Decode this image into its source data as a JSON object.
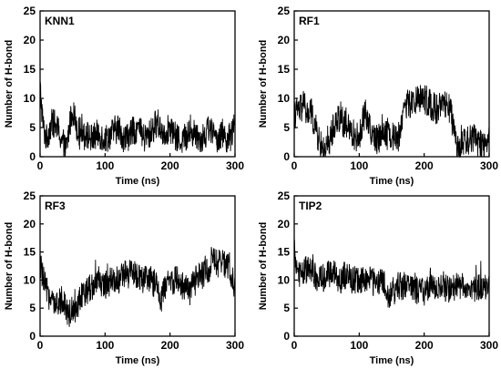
{
  "chart_data": [
    {
      "type": "line",
      "title": "KNN1",
      "xlabel": "Time (ns)",
      "ylabel": "Number of H-bond",
      "xlim": [
        0,
        300
      ],
      "ylim": [
        0,
        25
      ],
      "xticks": [
        0,
        100,
        200,
        300
      ],
      "yticks": [
        0,
        5,
        10,
        15,
        20,
        25
      ],
      "series_color": "#000000",
      "series": [
        {
          "x": [
            0,
            2,
            5,
            10,
            15,
            20,
            25,
            30,
            35,
            40,
            45,
            50,
            55,
            60,
            65,
            70,
            80,
            90,
            100,
            110,
            120,
            130,
            140,
            150,
            160,
            170,
            180,
            190,
            200,
            210,
            220,
            230,
            240,
            250,
            260,
            270,
            280,
            290,
            300
          ],
          "y": [
            12,
            9,
            5,
            3,
            5,
            6,
            5,
            4,
            2,
            1,
            5,
            8,
            6,
            4,
            5,
            4,
            3,
            4,
            3,
            4,
            5,
            3,
            4,
            5,
            3,
            4,
            6,
            4,
            5,
            3,
            3,
            4,
            4,
            3,
            5,
            3,
            4,
            3,
            5
          ]
        }
      ]
    },
    {
      "type": "line",
      "title": "RF1",
      "xlabel": "Time (ns)",
      "ylabel": "Number of H-bond",
      "xlim": [
        0,
        300
      ],
      "ylim": [
        0,
        25
      ],
      "xticks": [
        0,
        100,
        200,
        300
      ],
      "yticks": [
        0,
        5,
        10,
        15,
        20,
        25
      ],
      "series_color": "#000000",
      "series": [
        {
          "x": [
            0,
            5,
            10,
            15,
            20,
            25,
            30,
            35,
            40,
            45,
            50,
            55,
            60,
            65,
            70,
            75,
            80,
            90,
            100,
            105,
            110,
            115,
            120,
            125,
            130,
            135,
            140,
            145,
            150,
            155,
            160,
            165,
            170,
            180,
            190,
            200,
            210,
            220,
            230,
            240,
            245,
            250,
            255,
            260,
            270,
            280,
            290,
            300
          ],
          "y": [
            7,
            8,
            8,
            9,
            7,
            8,
            6,
            4,
            2,
            1,
            1,
            3,
            5,
            6,
            7,
            6,
            5,
            4,
            3,
            6,
            8,
            5,
            4,
            3,
            3,
            5,
            4,
            5,
            3,
            4,
            3,
            6,
            9,
            9,
            10,
            10,
            9,
            8,
            9,
            8,
            5,
            1,
            2,
            2,
            3,
            3,
            2,
            3
          ]
        }
      ]
    },
    {
      "type": "line",
      "title": "RF3",
      "xlabel": "Time (ns)",
      "ylabel": "Number of H-bond",
      "xlim": [
        0,
        300
      ],
      "ylim": [
        0,
        25
      ],
      "xticks": [
        0,
        100,
        200,
        300
      ],
      "yticks": [
        0,
        5,
        10,
        15,
        20,
        25
      ],
      "series_color": "#000000",
      "series": [
        {
          "x": [
            0,
            5,
            10,
            15,
            20,
            25,
            30,
            35,
            40,
            45,
            50,
            55,
            60,
            70,
            80,
            90,
            100,
            110,
            120,
            130,
            140,
            150,
            160,
            170,
            180,
            185,
            190,
            200,
            210,
            220,
            230,
            240,
            250,
            260,
            265,
            270,
            280,
            290,
            300
          ],
          "y": [
            13,
            10,
            8,
            7,
            6,
            5,
            6,
            7,
            5,
            4,
            5,
            5,
            6,
            8,
            9,
            10,
            9,
            10,
            10,
            11,
            11,
            11,
            10,
            10,
            9,
            6,
            8,
            10,
            10,
            9,
            8,
            10,
            11,
            12,
            14,
            13,
            13,
            12,
            9
          ]
        }
      ]
    },
    {
      "type": "line",
      "title": "TIP2",
      "xlabel": "Time (ns)",
      "ylabel": "Number of H-bond",
      "xlim": [
        0,
        300
      ],
      "ylim": [
        0,
        25
      ],
      "xticks": [
        0,
        100,
        200,
        300
      ],
      "yticks": [
        0,
        5,
        10,
        15,
        20,
        25
      ],
      "series_color": "#000000",
      "series": [
        {
          "x": [
            0,
            2,
            5,
            10,
            20,
            30,
            40,
            50,
            60,
            70,
            80,
            90,
            100,
            110,
            120,
            130,
            140,
            145,
            150,
            155,
            160,
            170,
            180,
            190,
            200,
            210,
            220,
            230,
            240,
            250,
            260,
            270,
            280,
            290,
            300
          ],
          "y": [
            15,
            13,
            12,
            11,
            12,
            11,
            10,
            11,
            11,
            10,
            11,
            10,
            10,
            10,
            10,
            10,
            9,
            6,
            8,
            8,
            9,
            9,
            9,
            8,
            8,
            9,
            8,
            9,
            8,
            9,
            9,
            9,
            8,
            9,
            9
          ]
        }
      ]
    }
  ]
}
